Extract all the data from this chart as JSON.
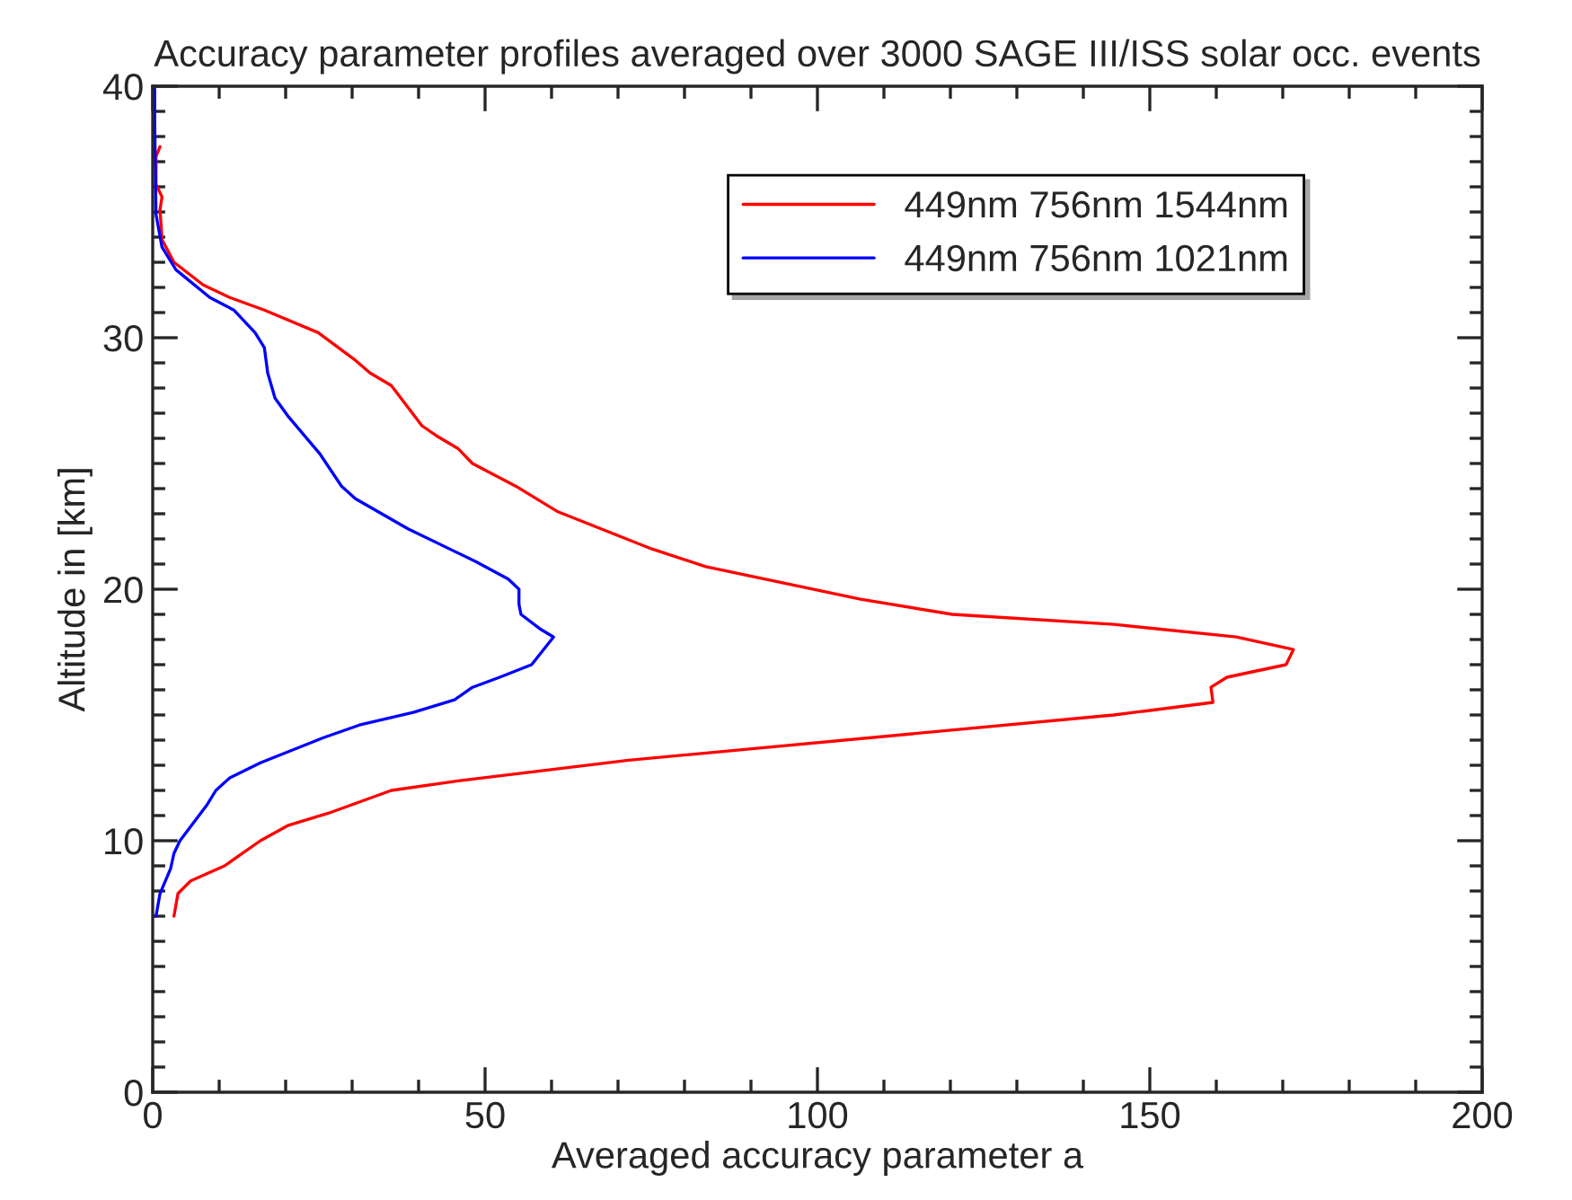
{
  "chart_data": {
    "type": "line",
    "title": "Accuracy parameter profiles averaged over 3000 SAGE III/ISS solar occ. events",
    "xlabel": "Averaged accuracy parameter a",
    "ylabel": "Altitude in [km]",
    "xlim": [
      0,
      200
    ],
    "xticks": [
      0,
      50,
      100,
      150,
      200
    ],
    "ylim": [
      0,
      40
    ],
    "yticks": [
      0,
      10,
      20,
      30,
      40
    ],
    "legend": "top right",
    "grid": false,
    "line_style": "solid",
    "marker": "none",
    "series": [
      {
        "name": "449nm 756nm 1544nm",
        "color": "#ff0000",
        "x": [
          3.2,
          3.8,
          5.7,
          10.8,
          16.2,
          20.3,
          26.5,
          35.9,
          46.5,
          71.6,
          144.6,
          159.5,
          159.2,
          161.6,
          170.5,
          171.6,
          163,
          144.6,
          120.3,
          106.5,
          83.2,
          75.1,
          60.8,
          54.6,
          48.1,
          45.9,
          42.7,
          40.5,
          35.9,
          32.7,
          30.5,
          24.9,
          16.8,
          11.6,
          7.6,
          3.2,
          1.4,
          1.1,
          1.4,
          0.5,
          0.5,
          1.1
        ],
        "values": [
          7.0,
          7.9,
          8.4,
          9.0,
          10.0,
          10.6,
          11.1,
          12.0,
          12.4,
          13.2,
          15.0,
          15.5,
          16.1,
          16.5,
          17.0,
          17.6,
          18.1,
          18.6,
          19.0,
          19.6,
          20.9,
          21.6,
          23.1,
          24.1,
          25.0,
          25.6,
          26.1,
          26.5,
          28.1,
          28.6,
          29.1,
          30.2,
          31.1,
          31.6,
          32.1,
          33.0,
          33.9,
          35.1,
          35.6,
          36.1,
          37.2,
          37.6
        ]
      },
      {
        "name": "449nm 756nm 1021nm",
        "color": "#0000ff",
        "x": [
          0.5,
          1.1,
          2.7,
          3.2,
          4.1,
          8.1,
          9.5,
          11.6,
          16.2,
          25.7,
          31.1,
          39.2,
          45.4,
          48.1,
          52.2,
          57.0,
          60.3,
          58.4,
          55.4,
          55.1,
          55.1,
          53.5,
          48.6,
          38.4,
          30.5,
          28.4,
          25.1,
          23.5,
          20.3,
          18.4,
          17.3,
          16.8,
          15.4,
          12.2,
          8.6,
          3.5,
          1.4,
          0.5,
          0.3,
          0.3
        ],
        "values": [
          7.0,
          7.9,
          8.9,
          9.5,
          10.0,
          11.4,
          12.0,
          12.5,
          13.1,
          14.1,
          14.6,
          15.1,
          15.6,
          16.1,
          16.5,
          17.0,
          18.1,
          18.4,
          19.0,
          19.4,
          20.0,
          20.4,
          21.1,
          22.4,
          23.6,
          24.1,
          25.4,
          25.9,
          26.9,
          27.6,
          28.6,
          29.6,
          30.2,
          31.1,
          31.6,
          32.7,
          33.6,
          34.9,
          38.6,
          39.9
        ]
      }
    ]
  }
}
